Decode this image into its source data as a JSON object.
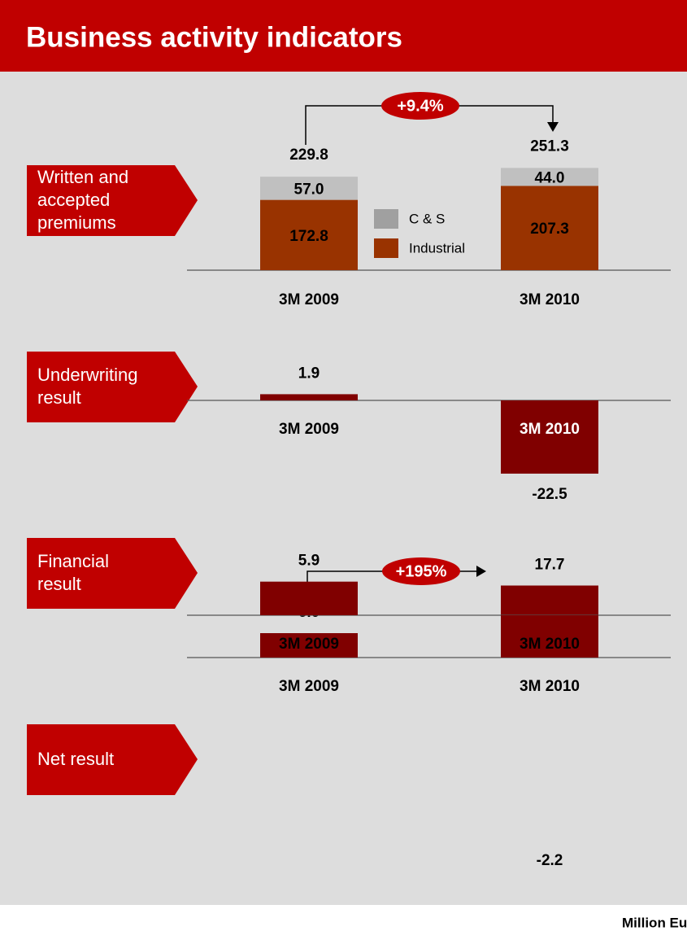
{
  "title": "Business activity indicators",
  "footnote": "Million Euros",
  "chart_data": [
    {
      "type": "stacked_bar",
      "label": "Written and accepted premiums",
      "categories": [
        "3M 2009",
        "3M 2010"
      ],
      "series": [
        {
          "name": "Industrial",
          "color": "#993300",
          "values": [
            172.8,
            207.3
          ]
        },
        {
          "name": "C & S",
          "color": "#c0c0c0",
          "legend_color": "#a0a0a0",
          "values": [
            57.0,
            44.0
          ],
          "value_labels": [
            "57.0",
            "44.0"
          ]
        }
      ],
      "totals": [
        229.8,
        251.3
      ],
      "change": "+9.4%",
      "ylim": [
        0,
        300
      ]
    },
    {
      "type": "bar",
      "label": "Underwriting result",
      "categories": [
        "3M 2009",
        "3M 2010"
      ],
      "values": [
        1.9,
        -22.5
      ],
      "color": "#800000",
      "ylim": [
        -25,
        5
      ]
    },
    {
      "type": "bar",
      "label": "Financial result",
      "categories": [
        "3M 2009",
        "3M 2010"
      ],
      "values": [
        6.0,
        17.7
      ],
      "value_labels": [
        "6.0",
        "17.7"
      ],
      "color": "#800000",
      "change": "+195%",
      "ylim": [
        0,
        20
      ]
    },
    {
      "type": "bar",
      "label": "Net result",
      "categories": [
        "3M 2009",
        "3M 2010"
      ],
      "values": [
        5.9,
        -2.2
      ],
      "color": "#800000",
      "ylim": [
        -3,
        7
      ]
    }
  ]
}
